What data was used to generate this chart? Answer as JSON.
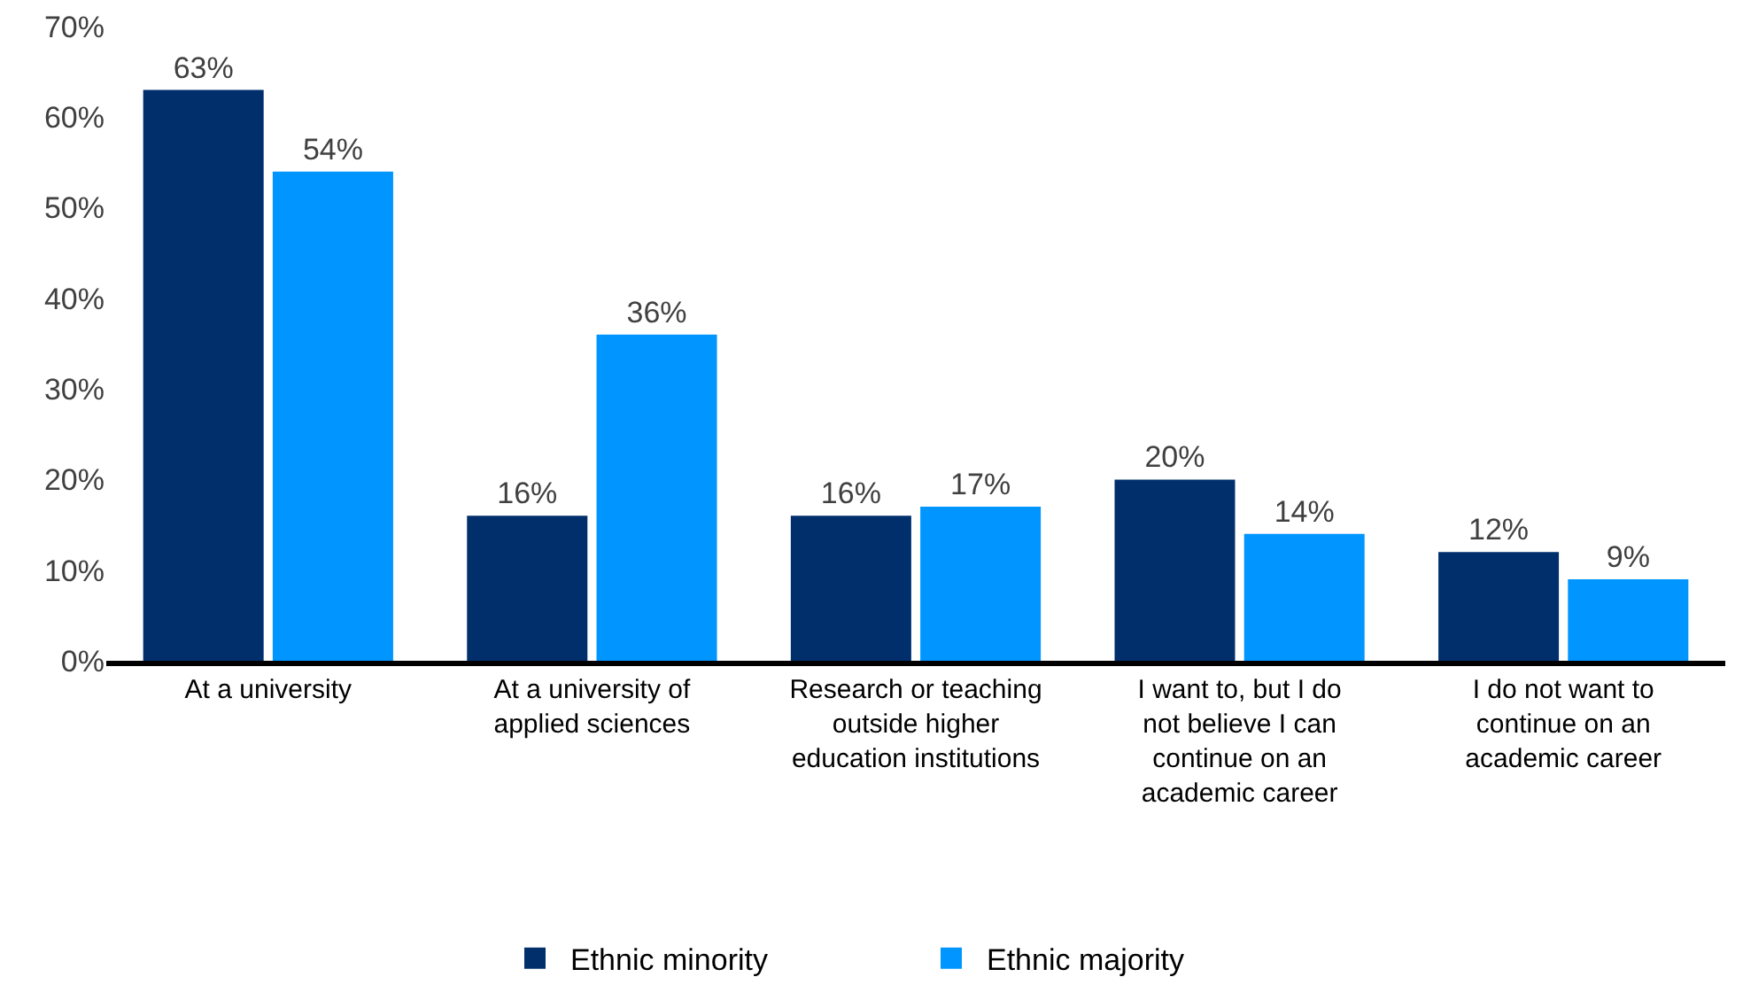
{
  "chart_data": {
    "type": "bar",
    "categories": [
      "At a university",
      "At a university of applied sciences",
      "Research or teaching outside higher education institutions",
      "I want to, but I do not believe I can continue on an academic career",
      "I do not want to continue on an academic career"
    ],
    "series": [
      {
        "name": "Ethnic minority",
        "color": "#002f6c",
        "values": [
          63,
          16,
          16,
          20,
          12
        ],
        "value_labels": [
          "63%",
          "16%",
          "16%",
          "20%",
          "12%"
        ]
      },
      {
        "name": "Ethnic majority",
        "color": "#0095ff",
        "values": [
          54,
          36,
          17,
          14,
          9
        ],
        "value_labels": [
          "54%",
          "36%",
          "17%",
          "14%",
          "9%"
        ]
      }
    ],
    "ylim": [
      0,
      70
    ],
    "yticks": [
      {
        "value": 0,
        "label": "0%"
      },
      {
        "value": 10,
        "label": "10%"
      },
      {
        "value": 20,
        "label": "20%"
      },
      {
        "value": 30,
        "label": "30%"
      },
      {
        "value": 40,
        "label": "40%"
      },
      {
        "value": 50,
        "label": "50%"
      },
      {
        "value": 60,
        "label": "60%"
      },
      {
        "value": 70,
        "label": "70%"
      }
    ],
    "grid": false,
    "legend": "bottom"
  }
}
